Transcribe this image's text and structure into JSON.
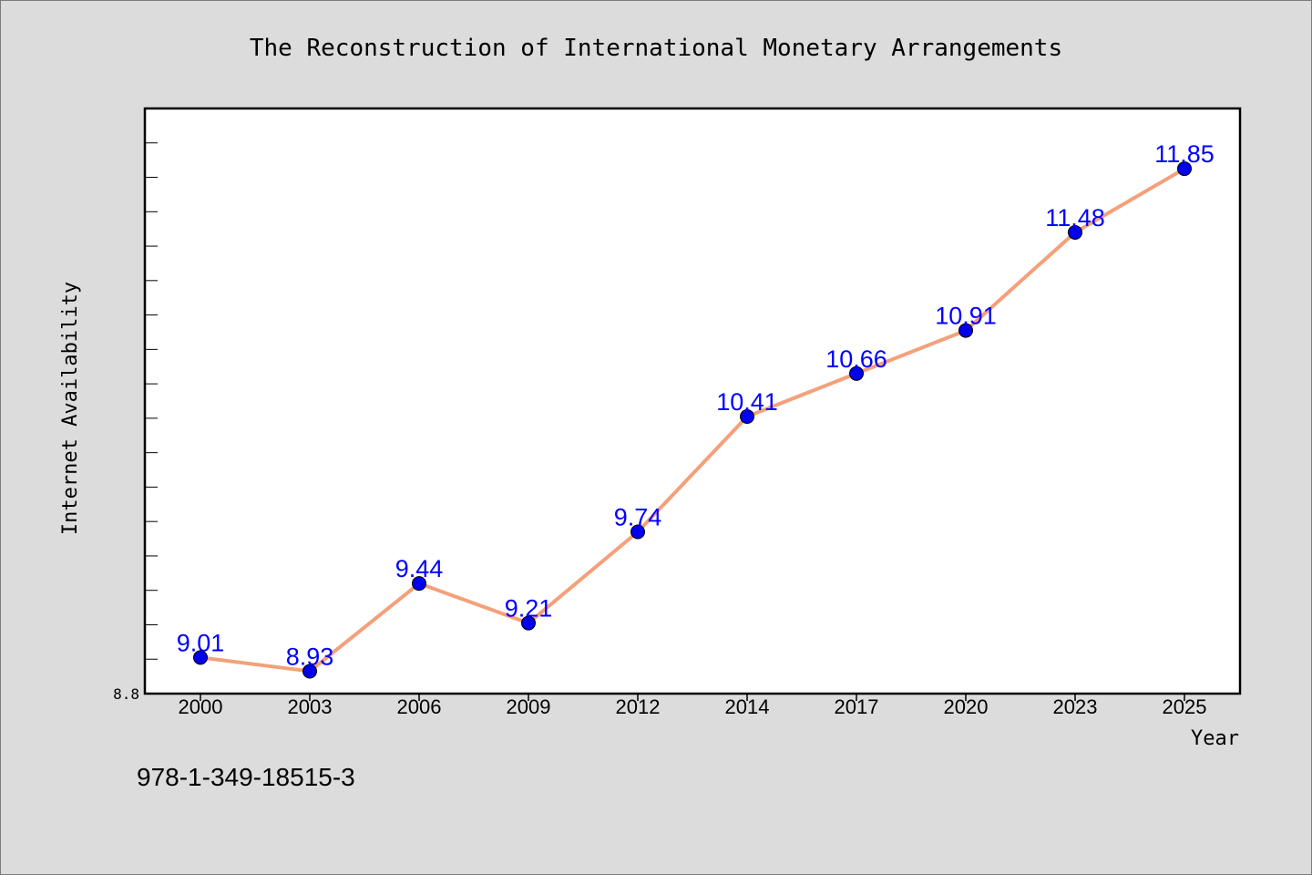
{
  "chart_data": {
    "type": "line",
    "title": "The Reconstruction of International Monetary Arrangements",
    "xlabel": "Year",
    "ylabel": "Internet Availability",
    "x": [
      "2000",
      "2003",
      "2006",
      "2009",
      "2012",
      "2014",
      "2017",
      "2020",
      "2023",
      "2025"
    ],
    "values": [
      9.01,
      8.93,
      9.44,
      9.21,
      9.74,
      10.41,
      10.66,
      10.91,
      11.48,
      11.85
    ],
    "data_labels": [
      "9.01",
      "8.93",
      "9.44",
      "9.21",
      "9.74",
      "10.41",
      "10.66",
      "10.91",
      "11.48",
      "11.85"
    ],
    "ylim": [
      8.8,
      12.2
    ],
    "y_tick_labels": [
      "8.8"
    ],
    "grid": false,
    "legend": "none",
    "colors": {
      "line": "#f4a07a",
      "marker": "#0000ee",
      "label": "#0000ff",
      "background": "#dcdcdc",
      "plot_area": "#ffffff"
    }
  },
  "footer_text": "978-1-349-18515-3"
}
